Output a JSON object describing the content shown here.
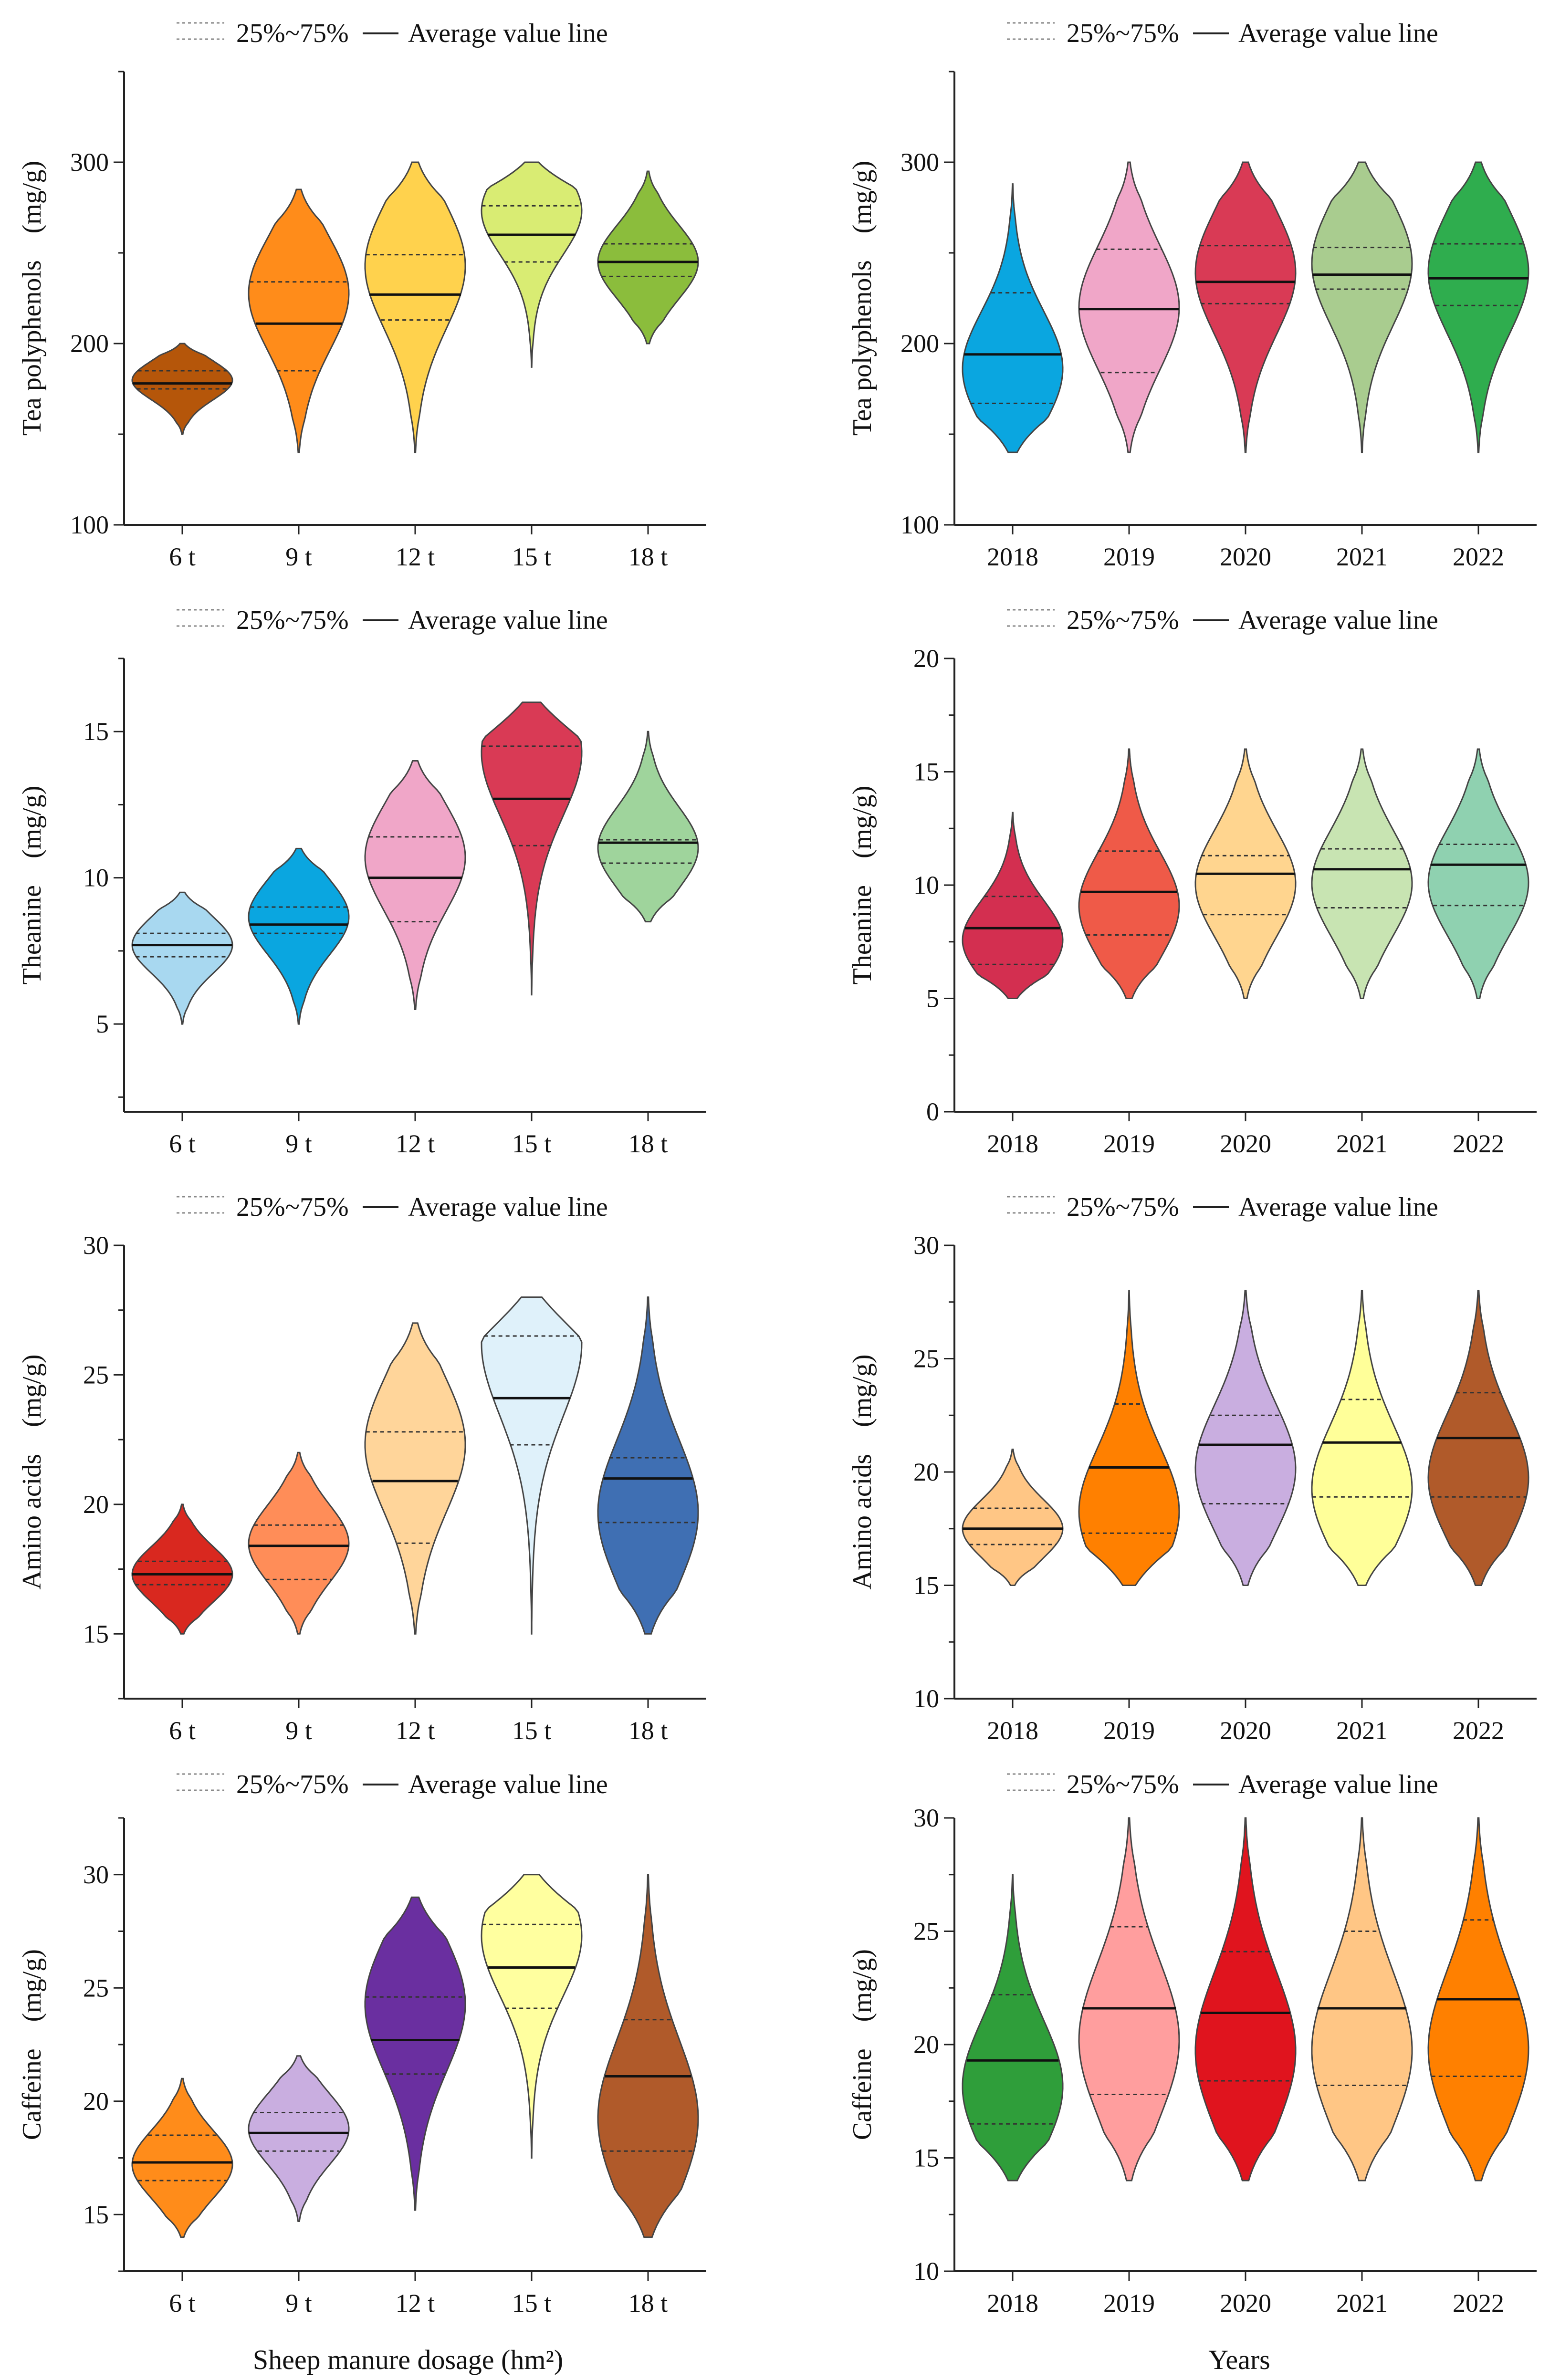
{
  "figure": {
    "x_title_left": "Sheep manure dosage (hm²)",
    "x_title_right": "Years"
  },
  "legend": {
    "quartile_label": "25%~75%",
    "mean_label": "Average value line"
  },
  "chart_data": [
    {
      "type": "violin",
      "ylabel": "Tea polyphenols　(mg/g)",
      "ylim": [
        100,
        350
      ],
      "yticks": [
        100,
        200,
        300
      ],
      "categories": [
        "6 t",
        "9 t",
        "12 t",
        "15 t",
        "18 t"
      ],
      "series": [
        {
          "name": "6 t",
          "color": "#b5560a",
          "min": 150,
          "max": 200,
          "mode": 180,
          "mean": 178,
          "q1": 175,
          "q3": 185
        },
        {
          "name": "9 t",
          "color": "#ff8c1a",
          "min": 140,
          "max": 285,
          "mode": 230,
          "mean": 211,
          "q1": 185,
          "q3": 234
        },
        {
          "name": "12 t",
          "color": "#ffd24d",
          "min": 140,
          "max": 300,
          "mode": 245,
          "mean": 227,
          "q1": 213,
          "q3": 249
        },
        {
          "name": "15 t",
          "color": "#d9ec73",
          "min": 187,
          "max": 300,
          "mode": 275,
          "mean": 260,
          "q1": 245,
          "q3": 276
        },
        {
          "name": "18 t",
          "color": "#8bbd3c",
          "min": 200,
          "max": 295,
          "mode": 245,
          "mean": 245,
          "q1": 237,
          "q3": 255
        }
      ]
    },
    {
      "type": "violin",
      "ylabel": "Tea polyphenols　(mg/g)",
      "ylim": [
        100,
        350
      ],
      "yticks": [
        100,
        200,
        300
      ],
      "categories": [
        "2018",
        "2019",
        "2020",
        "2021",
        "2022"
      ],
      "series": [
        {
          "name": "2018",
          "color": "#0aa6e0",
          "min": 140,
          "max": 288,
          "mode": 185,
          "mean": 194,
          "q1": 167,
          "q3": 228
        },
        {
          "name": "2019",
          "color": "#f0a6c8",
          "min": 140,
          "max": 300,
          "mode": 220,
          "mean": 219,
          "q1": 184,
          "q3": 252
        },
        {
          "name": "2020",
          "color": "#d93a55",
          "min": 140,
          "max": 300,
          "mode": 240,
          "mean": 234,
          "q1": 222,
          "q3": 254
        },
        {
          "name": "2021",
          "color": "#a9cc8f",
          "min": 140,
          "max": 300,
          "mode": 245,
          "mean": 238,
          "q1": 230,
          "q3": 253
        },
        {
          "name": "2022",
          "color": "#2fad4e",
          "min": 140,
          "max": 300,
          "mode": 240,
          "mean": 236,
          "q1": 221,
          "q3": 255
        }
      ]
    },
    {
      "type": "violin",
      "ylabel": "Theanine　(mg/g)",
      "ylim": [
        2,
        17.5
      ],
      "yticks": [
        5,
        10,
        15
      ],
      "categories": [
        "6 t",
        "9 t",
        "12 t",
        "15 t",
        "18 t"
      ],
      "series": [
        {
          "name": "6 t",
          "color": "#a8d8f0",
          "min": 5,
          "max": 9.5,
          "mode": 7.7,
          "mean": 7.7,
          "q1": 7.3,
          "q3": 8.1
        },
        {
          "name": "9 t",
          "color": "#0aa6e0",
          "min": 5,
          "max": 11,
          "mode": 8.7,
          "mean": 8.4,
          "q1": 8.1,
          "q3": 9.0
        },
        {
          "name": "12 t",
          "color": "#f0a6c8",
          "min": 5.5,
          "max": 14,
          "mode": 10.8,
          "mean": 10.0,
          "q1": 8.5,
          "q3": 11.4
        },
        {
          "name": "15 t",
          "color": "#d93a55",
          "min": 6,
          "max": 16,
          "mode": 14.5,
          "mean": 12.7,
          "q1": 11.1,
          "q3": 14.5
        },
        {
          "name": "18 t",
          "color": "#9fd49c",
          "min": 8.5,
          "max": 15,
          "mode": 11,
          "mean": 11.2,
          "q1": 10.5,
          "q3": 11.3
        }
      ]
    },
    {
      "type": "violin",
      "ylabel": "Theanine　(mg/g)",
      "ylim": [
        0,
        20
      ],
      "yticks": [
        0,
        5,
        10,
        15,
        20
      ],
      "categories": [
        "2018",
        "2019",
        "2020",
        "2021",
        "2022"
      ],
      "series": [
        {
          "name": "2018",
          "color": "#d32f50",
          "min": 5,
          "max": 13.2,
          "mode": 7.5,
          "mean": 8.1,
          "q1": 6.5,
          "q3": 9.5
        },
        {
          "name": "2019",
          "color": "#ef5a48",
          "min": 5,
          "max": 16,
          "mode": 9,
          "mean": 9.7,
          "q1": 7.8,
          "q3": 11.5
        },
        {
          "name": "2020",
          "color": "#ffd58f",
          "min": 5,
          "max": 16,
          "mode": 10,
          "mean": 10.5,
          "q1": 8.7,
          "q3": 11.3
        },
        {
          "name": "2021",
          "color": "#c8e4b2",
          "min": 5,
          "max": 16,
          "mode": 10,
          "mean": 10.7,
          "q1": 9.0,
          "q3": 11.6
        },
        {
          "name": "2022",
          "color": "#8fd1b0",
          "min": 5,
          "max": 16,
          "mode": 10,
          "mean": 10.9,
          "q1": 9.1,
          "q3": 11.8
        }
      ]
    },
    {
      "type": "violin",
      "ylabel": "Amino acids　(mg/g)",
      "ylim": [
        12.5,
        30
      ],
      "yticks": [
        15,
        20,
        25,
        30
      ],
      "categories": [
        "6 t",
        "9 t",
        "12 t",
        "15 t",
        "18 t"
      ],
      "series": [
        {
          "name": "6 t",
          "color": "#d9281f",
          "min": 15,
          "max": 20,
          "mode": 17.3,
          "mean": 17.3,
          "q1": 16.9,
          "q3": 17.8
        },
        {
          "name": "9 t",
          "color": "#ff8d58",
          "min": 15,
          "max": 22,
          "mode": 18.5,
          "mean": 18.4,
          "q1": 17.1,
          "q3": 19.2
        },
        {
          "name": "12 t",
          "color": "#ffd59a",
          "min": 15,
          "max": 27,
          "mode": 22.5,
          "mean": 20.9,
          "q1": 18.5,
          "q3": 22.8
        },
        {
          "name": "15 t",
          "color": "#dff1fa",
          "min": 15,
          "max": 28,
          "mode": 26.5,
          "mean": 24.1,
          "q1": 22.3,
          "q3": 26.5
        },
        {
          "name": "18 t",
          "color": "#3f6fb3",
          "min": 15,
          "max": 28,
          "mode": 19.5,
          "mean": 21.0,
          "q1": 19.3,
          "q3": 21.8
        }
      ]
    },
    {
      "type": "violin",
      "ylabel": "Amino acids　(mg/g)",
      "ylim": [
        10,
        30
      ],
      "yticks": [
        10,
        15,
        20,
        25,
        30
      ],
      "categories": [
        "2018",
        "2019",
        "2020",
        "2021",
        "2022"
      ],
      "series": [
        {
          "name": "2018",
          "color": "#ffc685",
          "min": 15,
          "max": 21,
          "mode": 17.5,
          "mean": 17.5,
          "q1": 16.8,
          "q3": 18.4
        },
        {
          "name": "2019",
          "color": "#ff8000",
          "min": 15,
          "max": 28,
          "mode": 18,
          "mean": 20.2,
          "q1": 17.3,
          "q3": 23.0
        },
        {
          "name": "2020",
          "color": "#c9aee0",
          "min": 15,
          "max": 28,
          "mode": 20,
          "mean": 21.2,
          "q1": 18.6,
          "q3": 22.5
        },
        {
          "name": "2021",
          "color": "#ffff99",
          "min": 15,
          "max": 28,
          "mode": 19,
          "mean": 21.3,
          "q1": 18.9,
          "q3": 23.2
        },
        {
          "name": "2022",
          "color": "#b05a2a",
          "min": 15,
          "max": 28,
          "mode": 19.5,
          "mean": 21.5,
          "q1": 18.9,
          "q3": 23.5
        }
      ]
    },
    {
      "type": "violin",
      "ylabel": "Caffeine　(mg/g)",
      "ylim": [
        12.5,
        32.5
      ],
      "yticks": [
        15,
        20,
        25,
        30
      ],
      "categories": [
        "6 t",
        "9 t",
        "12 t",
        "15 t",
        "18 t"
      ],
      "series": [
        {
          "name": "6 t",
          "color": "#ff8c1a",
          "min": 14,
          "max": 21,
          "mode": 17.2,
          "mean": 17.3,
          "q1": 16.5,
          "q3": 18.5
        },
        {
          "name": "9 t",
          "color": "#c9aee0",
          "min": 14.7,
          "max": 22,
          "mode": 18.8,
          "mean": 18.6,
          "q1": 17.8,
          "q3": 19.5
        },
        {
          "name": "12 t",
          "color": "#6a2fa0",
          "min": 15.2,
          "max": 29,
          "mode": 24.5,
          "mean": 22.7,
          "q1": 21.2,
          "q3": 24.6
        },
        {
          "name": "15 t",
          "color": "#ffff9f",
          "min": 17.5,
          "max": 30,
          "mode": 27.5,
          "mean": 25.9,
          "q1": 24.1,
          "q3": 27.8
        },
        {
          "name": "18 t",
          "color": "#b05a2a",
          "min": 14,
          "max": 30,
          "mode": 19,
          "mean": 21.1,
          "q1": 17.8,
          "q3": 23.6
        }
      ]
    },
    {
      "type": "violin",
      "ylabel": "Caffeine　(mg/g)",
      "ylim": [
        10,
        30
      ],
      "yticks": [
        10,
        15,
        20,
        25,
        30
      ],
      "categories": [
        "2018",
        "2019",
        "2020",
        "2021",
        "2022"
      ],
      "series": [
        {
          "name": "2018",
          "color": "#2f9e3a",
          "min": 14,
          "max": 27.5,
          "mode": 18,
          "mean": 19.3,
          "q1": 16.5,
          "q3": 22.2
        },
        {
          "name": "2019",
          "color": "#ff9e9e",
          "min": 14,
          "max": 30,
          "mode": 20,
          "mean": 21.6,
          "q1": 17.8,
          "q3": 25.2
        },
        {
          "name": "2020",
          "color": "#e0141e",
          "min": 14,
          "max": 30,
          "mode": 19.5,
          "mean": 21.4,
          "q1": 18.4,
          "q3": 24.1
        },
        {
          "name": "2021",
          "color": "#ffc685",
          "min": 14,
          "max": 30,
          "mode": 19.5,
          "mean": 21.6,
          "q1": 18.2,
          "q3": 25.0
        },
        {
          "name": "2022",
          "color": "#ff8000",
          "min": 14,
          "max": 30,
          "mode": 19.5,
          "mean": 22.0,
          "q1": 18.6,
          "q3": 25.5
        }
      ]
    }
  ]
}
